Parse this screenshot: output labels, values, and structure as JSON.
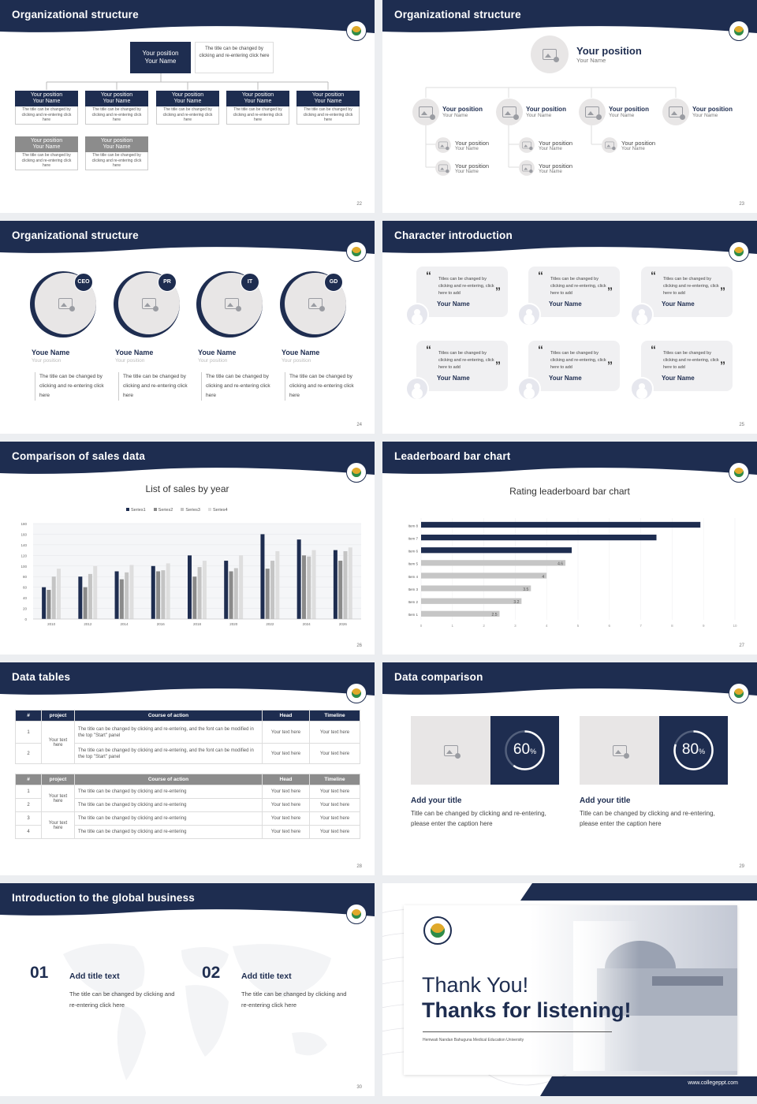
{
  "slides": {
    "s22": {
      "title": "Organizational structure",
      "page": "22",
      "top": {
        "pos": "Your position",
        "name": "Your Name",
        "desc": "The title can be changed by clicking and re-entering click here"
      },
      "row1": [
        {
          "pos": "Your position",
          "name": "Your Name",
          "desc": "The title can be changed by clicking and re-entering click here"
        },
        {
          "pos": "Your position",
          "name": "Your Name",
          "desc": "The title can be changed by clicking and re-entering click here"
        },
        {
          "pos": "Your position",
          "name": "Your Name",
          "desc": "The title can be changed by clicking and re-entering click here"
        },
        {
          "pos": "Your position",
          "name": "Your Name",
          "desc": "The title can be changed by clicking and re-entering click here"
        },
        {
          "pos": "Your position",
          "name": "Your Name",
          "desc": "The title can be changed by clicking and re-entering click here"
        }
      ],
      "row2": [
        {
          "pos": "Your position",
          "name": "Your Name",
          "desc": "The title can be changed by clicking and re-entering click here"
        },
        {
          "pos": "Your position",
          "name": "Your Name",
          "desc": "The title can be changed by clicking and re-entering click here"
        }
      ]
    },
    "s23": {
      "title": "Organizational structure",
      "page": "23",
      "top": {
        "pos": "Your position",
        "name": "Your Name"
      },
      "row": [
        {
          "pos": "Your position",
          "name": "Your Name"
        },
        {
          "pos": "Your position",
          "name": "Your Name"
        },
        {
          "pos": "Your position",
          "name": "Your Name"
        },
        {
          "pos": "Your position",
          "name": "Your Name"
        }
      ],
      "sub": [
        {
          "pos": "Your position",
          "name": "Your Name"
        },
        {
          "pos": "Your position",
          "name": "Your Name"
        },
        {
          "pos": "Your position",
          "name": "Your Name"
        },
        {
          "pos": "Your position",
          "name": "Your Name"
        },
        {
          "pos": "Your position",
          "name": "Your Name"
        }
      ]
    },
    "s24": {
      "title": "Organizational structure",
      "page": "24",
      "people": [
        {
          "badge": "CEO",
          "name": "Youe Name",
          "pos": "Your position",
          "desc": "The title can be changed by clicking and re-entering click here"
        },
        {
          "badge": "PR",
          "name": "Youe Name",
          "pos": "Your position",
          "desc": "The title can be changed by clicking and re-entering click here"
        },
        {
          "badge": "IT",
          "name": "Youe Name",
          "pos": "Your position",
          "desc": "The title can be changed by clicking and re-entering click here"
        },
        {
          "badge": "GD",
          "name": "Youe Name",
          "pos": "Your position",
          "desc": "The title can be changed by clicking and re-entering click here"
        }
      ]
    },
    "s25": {
      "title": "Character introduction",
      "page": "25",
      "cards": [
        {
          "text": "Titles can be changed by clicking and re-entering, click here to add",
          "name": "Your Name"
        },
        {
          "text": "Titles can be changed by clicking and re-entering, click here to add",
          "name": "Your Name"
        },
        {
          "text": "Titles can be changed by clicking and re-entering, click here to add",
          "name": "Your Name"
        },
        {
          "text": "Titles can be changed by clicking and re-entering, click here to add",
          "name": "Your Name"
        },
        {
          "text": "Titles can be changed by clicking and re-entering, click here to add",
          "name": "Your Name"
        },
        {
          "text": "Titles can be changed by clicking and re-entering, click here to add",
          "name": "Your Name"
        }
      ]
    },
    "s26": {
      "title": "Comparison of sales data",
      "page": "26"
    },
    "s27": {
      "title": "Leaderboard bar chart",
      "page": "27"
    },
    "s28": {
      "title": "Data tables",
      "page": "28",
      "headers": [
        "#",
        "project",
        "Course of action",
        "Head",
        "Timeline"
      ],
      "t1": {
        "project": "Your text here",
        "rows": [
          {
            "n": "1",
            "action": "The title can be changed by clicking and re-entering, and the font can be modified in the top \"Start\" panel",
            "head": "Your text here",
            "time": "Your text here"
          },
          {
            "n": "2",
            "action": "The title can be changed by clicking and re-entering, and the font can be modified in the top \"Start\" panel",
            "head": "Your text here",
            "time": "Your text here"
          }
        ]
      },
      "t2": {
        "projA": "Your text here",
        "projB": "Your text here",
        "rows": [
          {
            "n": "1",
            "action": "The title can be changed by clicking and re-entering",
            "head": "Your text here",
            "time": "Your text here"
          },
          {
            "n": "2",
            "action": "The title can be changed by clicking and re-entering",
            "head": "Your text here",
            "time": "Your text here"
          },
          {
            "n": "3",
            "action": "The title can be changed by clicking and re-entering",
            "head": "Your text here",
            "time": "Your text here"
          },
          {
            "n": "4",
            "action": "The title can be changed by clicking and re-entering",
            "head": "Your text here",
            "time": "Your text here"
          }
        ]
      }
    },
    "s29": {
      "title": "Data comparison",
      "page": "29",
      "items": [
        {
          "value": "60",
          "unit": "%",
          "pct": 0.6,
          "title": "Add your title",
          "desc": "Title can be changed by clicking and re-entering, please enter the caption here"
        },
        {
          "value": "80",
          "unit": "%",
          "pct": 0.8,
          "title": "Add your title",
          "desc": "Title can be changed by clicking and re-entering, please enter the caption here"
        }
      ]
    },
    "s30": {
      "title": "Introduction to the global business",
      "page": "30",
      "items": [
        {
          "num": "01",
          "title": "Add title text",
          "desc": "The title can be changed by clicking and re-entering click here"
        },
        {
          "num": "02",
          "title": "Add title text",
          "desc": "The title can be changed by clicking and re-entering click here"
        }
      ]
    },
    "s31": {
      "thanks1": "Thank You!",
      "thanks2": "Thanks for listening!",
      "school": "Hemwati Nandan Bahuguna Medical Education University",
      "url": "www.collegeppt.com"
    }
  },
  "chart_data": [
    {
      "type": "bar",
      "title": "List of sales by year",
      "categories": [
        "2010",
        "2012",
        "2014",
        "2016",
        "2018",
        "2020",
        "2022",
        "2024",
        "2026"
      ],
      "series": [
        {
          "name": "Series1",
          "values": [
            60,
            80,
            90,
            100,
            120,
            110,
            160,
            150,
            130
          ]
        },
        {
          "name": "Series2",
          "values": [
            55,
            60,
            75,
            90,
            80,
            90,
            95,
            120,
            110
          ]
        },
        {
          "name": "Series3",
          "values": [
            80,
            85,
            88,
            92,
            98,
            96,
            110,
            118,
            128
          ]
        },
        {
          "name": "Series4",
          "values": [
            95,
            100,
            102,
            105,
            110,
            120,
            128,
            130,
            135
          ]
        }
      ],
      "ylim": [
        0,
        180
      ],
      "yticks": [
        0,
        20,
        40,
        60,
        80,
        100,
        120,
        140,
        160,
        180
      ],
      "legend": "top",
      "colors": [
        "#1e2d50",
        "#8a8a8a",
        "#c4c4c4",
        "#dedede"
      ]
    },
    {
      "type": "bar",
      "orientation": "horizontal",
      "title": "Rating leaderboard bar chart",
      "categories": [
        "Item 1",
        "Item 2",
        "Item 3",
        "Item 4",
        "Item 5",
        "Item 6",
        "Item 7",
        "Item 8"
      ],
      "values": [
        2.5,
        3.2,
        3.5,
        4,
        4.6,
        4.8,
        7.5,
        8.9
      ],
      "labels": [
        "2.5",
        "3.2",
        "3.5",
        "4",
        "4.6",
        "",
        "",
        ""
      ],
      "xlim": [
        0,
        10
      ],
      "xticks": [
        0,
        1,
        2,
        3,
        4,
        5,
        6,
        7,
        8,
        9,
        10
      ],
      "colors": {
        "top": "#1e2d50",
        "rest": "#c6c6c6"
      }
    }
  ]
}
